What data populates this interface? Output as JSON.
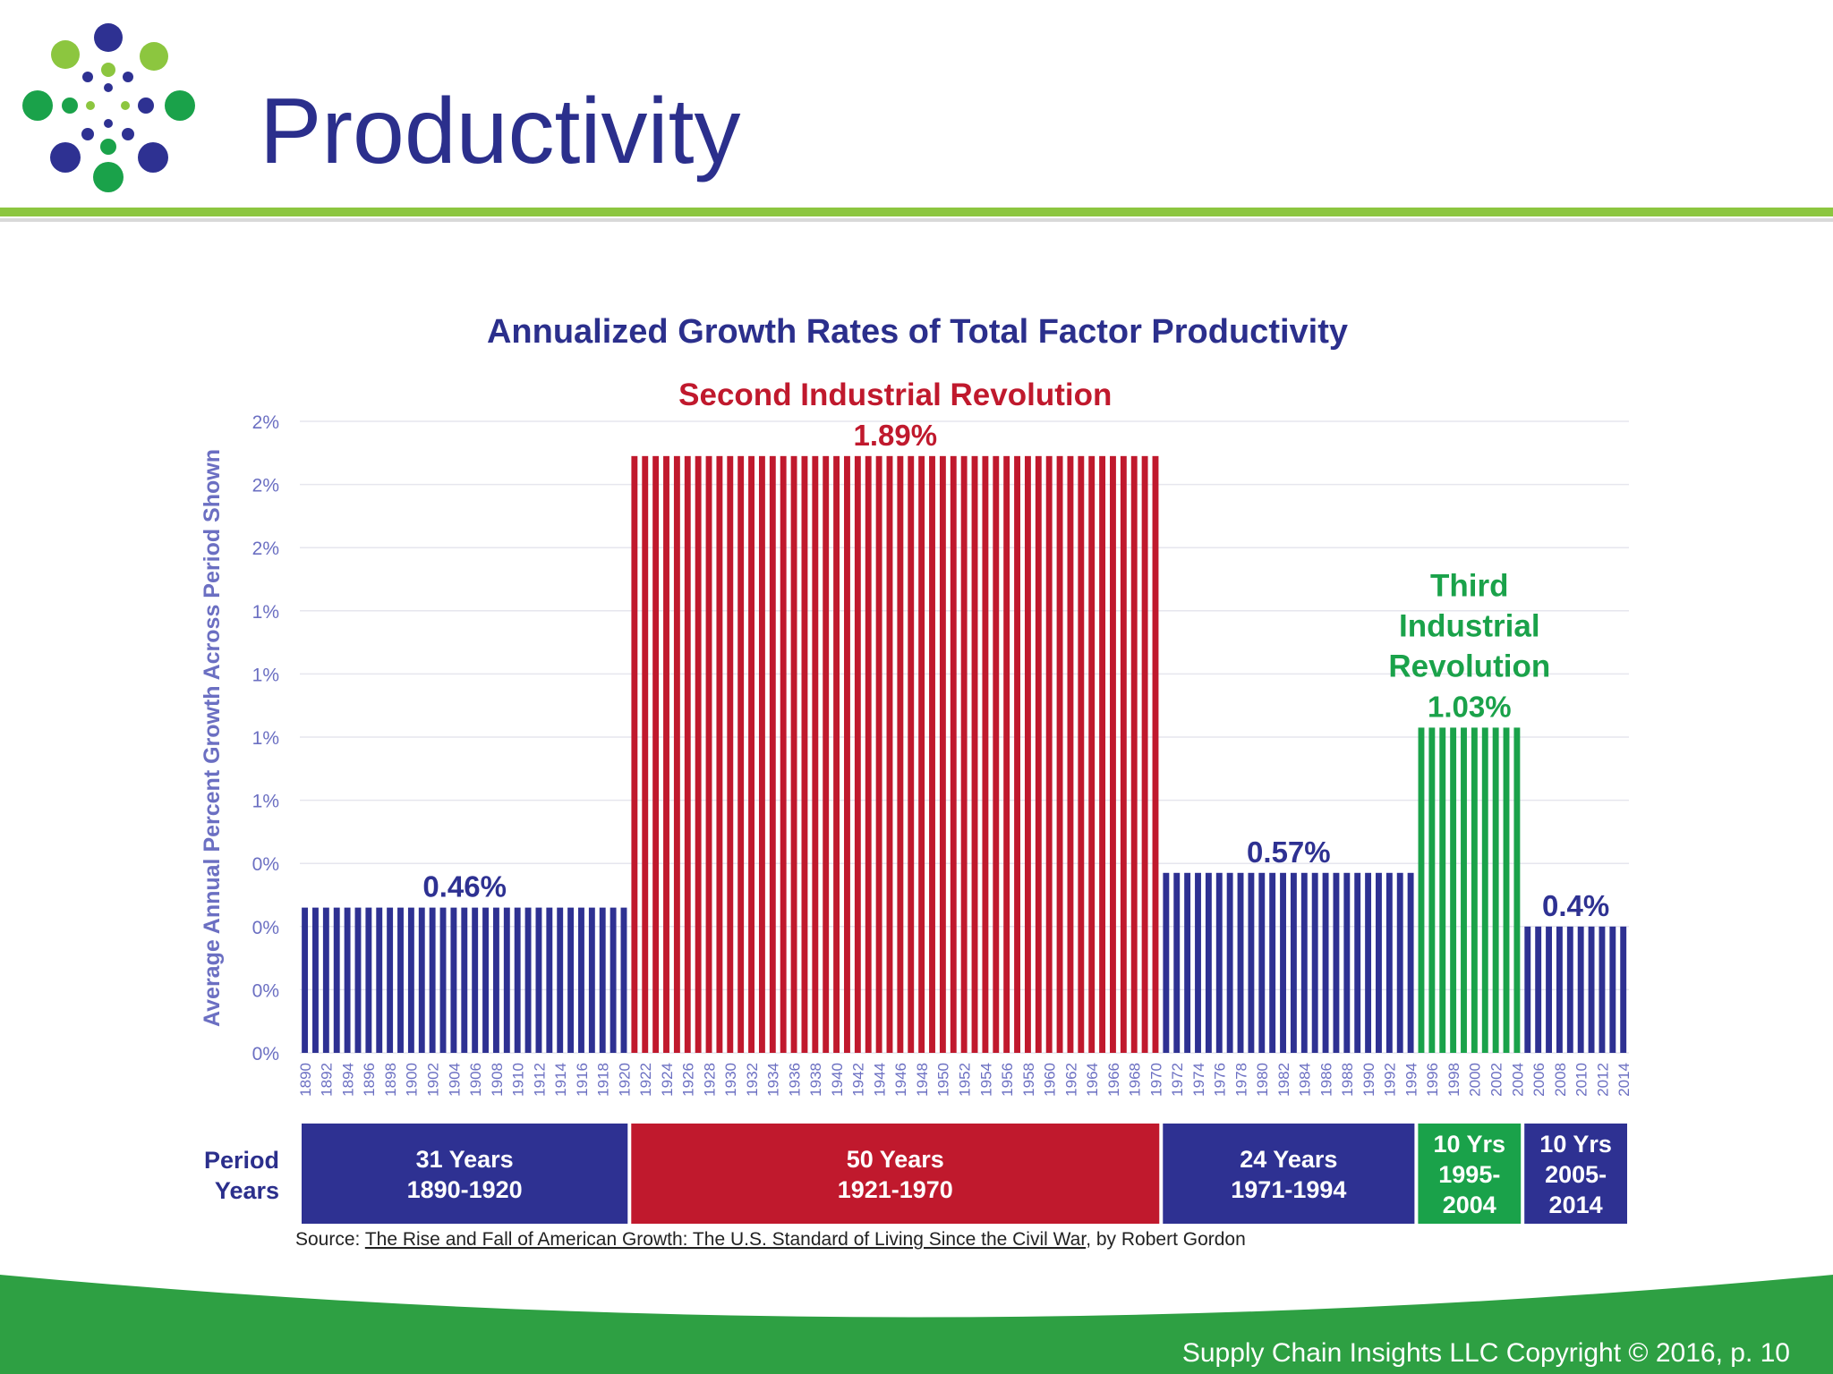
{
  "slide": {
    "title": "Productivity",
    "footer": "Supply Chain Insights LLC Copyright © 2016, p. 10"
  },
  "colors": {
    "title": "#2b2f8c",
    "blue_bars": "#2e3192",
    "red_bars": "#c0192d",
    "green_bars": "#1aa24a",
    "green_band": "#2ea043",
    "accent_line": "#8cc63f"
  },
  "chart_data": {
    "type": "bar",
    "title": "Annualized Growth Rates of Total Factor Productivity",
    "ylabel": "Average Annual Percent Growth Across Period Shown",
    "xlabel": "",
    "ylim": [
      0,
      2.0
    ],
    "y_tick_labels": [
      "0%",
      "0%",
      "0%",
      "0%",
      "1%",
      "1%",
      "1%",
      "1%",
      "2%",
      "2%",
      "2%"
    ],
    "grid": true,
    "x_tick_labels": [
      "1890",
      "1892",
      "1894",
      "1896",
      "1898",
      "1900",
      "1902",
      "1904",
      "1906",
      "1908",
      "1910",
      "1912",
      "1914",
      "1916",
      "1918",
      "1920",
      "1922",
      "1924",
      "1926",
      "1928",
      "1930",
      "1932",
      "1934",
      "1936",
      "1938",
      "1940",
      "1942",
      "1944",
      "1946",
      "1948",
      "1950",
      "1952",
      "1954",
      "1956",
      "1958",
      "1960",
      "1962",
      "1964",
      "1966",
      "1968",
      "1970",
      "1972",
      "1974",
      "1976",
      "1978",
      "1980",
      "1982",
      "1984",
      "1986",
      "1988",
      "1990",
      "1992",
      "1994",
      "1996",
      "1998",
      "2000",
      "2002",
      "2004",
      "2006",
      "2008",
      "2010",
      "2012",
      "2014"
    ],
    "periods": [
      {
        "start": 1890,
        "end": 1920,
        "value": 0.46,
        "value_label": "0.46%",
        "color": "#2e3192",
        "heading": [],
        "label_line1": "31 Years",
        "label_line2": "1890-1920",
        "label_line3": ""
      },
      {
        "start": 1921,
        "end": 1970,
        "value": 1.89,
        "value_label": "1.89%",
        "color": "#c0192d",
        "heading": [
          "Second Industrial Revolution"
        ],
        "label_line1": "50 Years",
        "label_line2": "1921-1970",
        "label_line3": ""
      },
      {
        "start": 1971,
        "end": 1994,
        "value": 0.57,
        "value_label": "0.57%",
        "color": "#2e3192",
        "heading": [],
        "label_line1": "24 Years",
        "label_line2": "1971-1994",
        "label_line3": ""
      },
      {
        "start": 1995,
        "end": 2004,
        "value": 1.03,
        "value_label": "1.03%",
        "color": "#1aa24a",
        "heading": [
          "Third",
          "Industrial",
          "Revolution"
        ],
        "label_line1": "10 Yrs",
        "label_line2": "1995-",
        "label_line3": "2004"
      },
      {
        "start": 2005,
        "end": 2014,
        "value": 0.4,
        "value_label": "0.4%",
        "color": "#2e3192",
        "heading": [],
        "label_line1": "10 Yrs",
        "label_line2": "2005-",
        "label_line3": "2014"
      }
    ],
    "period_row_label": [
      "Period",
      "Years"
    ],
    "source_prefix": "Source: ",
    "source_title": "The Rise and Fall of American Growth: The U.S. Standard of Living Since the Civil War",
    "source_suffix": ", by Robert Gordon"
  }
}
